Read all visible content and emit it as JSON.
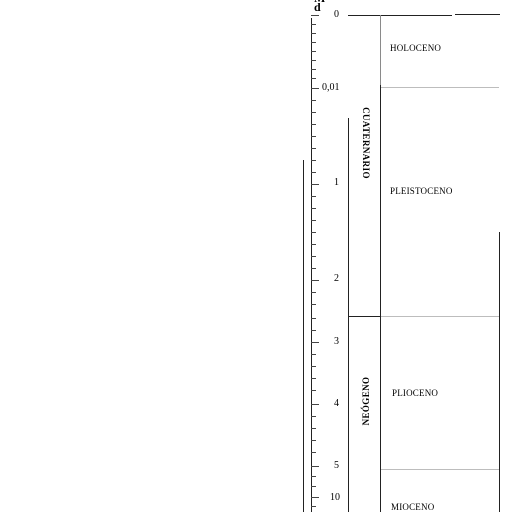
{
  "header": {
    "top_label": "M\nd"
  },
  "scale": {
    "values": [
      "0",
      "0,01",
      "1",
      "2",
      "3",
      "4",
      "5",
      "10"
    ]
  },
  "periods": {
    "cuaternario": "CUATERNARIO",
    "neogeno": "NEÓGENO"
  },
  "epochs": {
    "holoceno": "HOLOCENO",
    "pleistoceno": "PLEISTOCENO",
    "plioceno": "PLIOCENO",
    "mioceno": "MIOCENO"
  },
  "colors": {
    "line": "#222222",
    "grid": "#bdbdbd"
  }
}
